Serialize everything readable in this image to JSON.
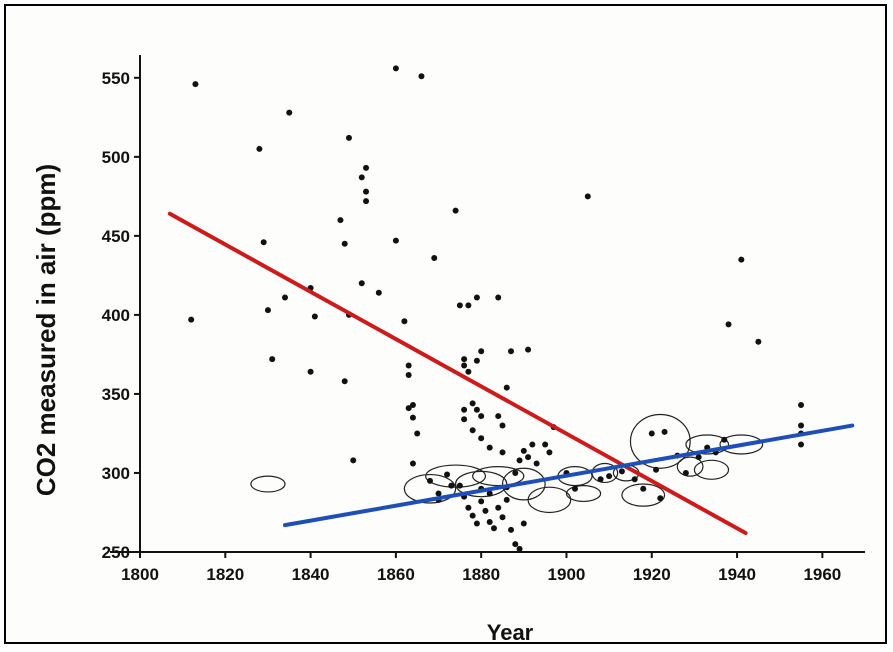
{
  "chart_data": {
    "type": "scatter",
    "title": "",
    "xlabel": "Year",
    "ylabel": "CO2 measured in air  (ppm)",
    "xlim": [
      1800,
      1970
    ],
    "ylim": [
      250,
      560
    ],
    "x_ticks": [
      1800,
      1820,
      1840,
      1860,
      1880,
      1900,
      1920,
      1940,
      1960
    ],
    "y_ticks": [
      250,
      300,
      350,
      400,
      450,
      500,
      550
    ],
    "grid": false,
    "points": [
      {
        "x": 1813,
        "y": 546
      },
      {
        "x": 1812,
        "y": 397
      },
      {
        "x": 1828,
        "y": 505
      },
      {
        "x": 1829,
        "y": 446
      },
      {
        "x": 1830,
        "y": 403
      },
      {
        "x": 1831,
        "y": 372
      },
      {
        "x": 1834,
        "y": 411
      },
      {
        "x": 1835,
        "y": 528
      },
      {
        "x": 1840,
        "y": 417
      },
      {
        "x": 1841,
        "y": 399
      },
      {
        "x": 1840,
        "y": 364
      },
      {
        "x": 1847,
        "y": 460
      },
      {
        "x": 1848,
        "y": 445
      },
      {
        "x": 1849,
        "y": 512
      },
      {
        "x": 1848,
        "y": 358
      },
      {
        "x": 1849,
        "y": 400
      },
      {
        "x": 1850,
        "y": 308
      },
      {
        "x": 1852,
        "y": 487
      },
      {
        "x": 1853,
        "y": 493
      },
      {
        "x": 1853,
        "y": 478
      },
      {
        "x": 1853,
        "y": 472
      },
      {
        "x": 1852,
        "y": 420
      },
      {
        "x": 1856,
        "y": 414
      },
      {
        "x": 1860,
        "y": 556
      },
      {
        "x": 1860,
        "y": 447
      },
      {
        "x": 1866,
        "y": 551
      },
      {
        "x": 1869,
        "y": 436
      },
      {
        "x": 1862,
        "y": 396
      },
      {
        "x": 1863,
        "y": 368
      },
      {
        "x": 1863,
        "y": 362
      },
      {
        "x": 1863,
        "y": 341
      },
      {
        "x": 1864,
        "y": 343
      },
      {
        "x": 1864,
        "y": 335
      },
      {
        "x": 1865,
        "y": 325
      },
      {
        "x": 1864,
        "y": 306
      },
      {
        "x": 1874,
        "y": 466
      },
      {
        "x": 1875,
        "y": 406
      },
      {
        "x": 1877,
        "y": 406
      },
      {
        "x": 1879,
        "y": 411
      },
      {
        "x": 1884,
        "y": 411
      },
      {
        "x": 1876,
        "y": 372
      },
      {
        "x": 1876,
        "y": 368
      },
      {
        "x": 1877,
        "y": 364
      },
      {
        "x": 1879,
        "y": 371
      },
      {
        "x": 1880,
        "y": 377
      },
      {
        "x": 1876,
        "y": 340
      },
      {
        "x": 1876,
        "y": 334
      },
      {
        "x": 1878,
        "y": 344
      },
      {
        "x": 1879,
        "y": 340
      },
      {
        "x": 1880,
        "y": 336
      },
      {
        "x": 1878,
        "y": 327
      },
      {
        "x": 1880,
        "y": 322
      },
      {
        "x": 1882,
        "y": 316
      },
      {
        "x": 1885,
        "y": 313
      },
      {
        "x": 1885,
        "y": 330
      },
      {
        "x": 1884,
        "y": 336
      },
      {
        "x": 1887,
        "y": 377
      },
      {
        "x": 1891,
        "y": 378
      },
      {
        "x": 1886,
        "y": 354
      },
      {
        "x": 1875,
        "y": 292
      },
      {
        "x": 1876,
        "y": 285
      },
      {
        "x": 1877,
        "y": 278
      },
      {
        "x": 1878,
        "y": 273
      },
      {
        "x": 1879,
        "y": 268
      },
      {
        "x": 1880,
        "y": 282
      },
      {
        "x": 1880,
        "y": 290
      },
      {
        "x": 1881,
        "y": 276
      },
      {
        "x": 1882,
        "y": 287
      },
      {
        "x": 1882,
        "y": 269
      },
      {
        "x": 1883,
        "y": 265
      },
      {
        "x": 1884,
        "y": 278
      },
      {
        "x": 1885,
        "y": 272
      },
      {
        "x": 1886,
        "y": 283
      },
      {
        "x": 1886,
        "y": 291
      },
      {
        "x": 1887,
        "y": 264
      },
      {
        "x": 1888,
        "y": 255
      },
      {
        "x": 1889,
        "y": 252
      },
      {
        "x": 1890,
        "y": 268
      },
      {
        "x": 1888,
        "y": 300
      },
      {
        "x": 1889,
        "y": 308
      },
      {
        "x": 1890,
        "y": 314
      },
      {
        "x": 1891,
        "y": 310
      },
      {
        "x": 1892,
        "y": 318
      },
      {
        "x": 1893,
        "y": 306
      },
      {
        "x": 1895,
        "y": 318
      },
      {
        "x": 1896,
        "y": 313
      },
      {
        "x": 1897,
        "y": 329
      },
      {
        "x": 1868,
        "y": 295
      },
      {
        "x": 1870,
        "y": 287
      },
      {
        "x": 1872,
        "y": 299
      },
      {
        "x": 1873,
        "y": 292
      },
      {
        "x": 1870,
        "y": 283
      },
      {
        "x": 1905,
        "y": 475
      },
      {
        "x": 1900,
        "y": 300
      },
      {
        "x": 1902,
        "y": 290
      },
      {
        "x": 1908,
        "y": 296
      },
      {
        "x": 1910,
        "y": 298
      },
      {
        "x": 1913,
        "y": 301
      },
      {
        "x": 1916,
        "y": 296
      },
      {
        "x": 1918,
        "y": 290
      },
      {
        "x": 1920,
        "y": 325
      },
      {
        "x": 1921,
        "y": 302
      },
      {
        "x": 1922,
        "y": 284
      },
      {
        "x": 1923,
        "y": 326
      },
      {
        "x": 1926,
        "y": 311
      },
      {
        "x": 1928,
        "y": 300
      },
      {
        "x": 1931,
        "y": 310
      },
      {
        "x": 1933,
        "y": 316
      },
      {
        "x": 1935,
        "y": 313
      },
      {
        "x": 1937,
        "y": 321
      },
      {
        "x": 1938,
        "y": 394
      },
      {
        "x": 1941,
        "y": 435
      },
      {
        "x": 1945,
        "y": 383
      },
      {
        "x": 1955,
        "y": 343
      },
      {
        "x": 1955,
        "y": 330
      },
      {
        "x": 1955,
        "y": 325
      },
      {
        "x": 1955,
        "y": 318
      }
    ],
    "trend_lines": [
      {
        "color": "#cc1b1b",
        "from": [
          1807,
          464
        ],
        "to": [
          1942,
          262
        ]
      },
      {
        "color": "#1e4fb8",
        "from": [
          1834,
          267
        ],
        "to": [
          1967,
          330
        ]
      }
    ],
    "ellipses": [
      {
        "cx": 1830,
        "cy": 293,
        "rx": 4,
        "ry": 5
      },
      {
        "cx": 1868,
        "cy": 290,
        "rx": 6,
        "ry": 9
      },
      {
        "cx": 1874,
        "cy": 298,
        "rx": 7,
        "ry": 7
      },
      {
        "cx": 1880,
        "cy": 293,
        "rx": 6,
        "ry": 8
      },
      {
        "cx": 1884,
        "cy": 298,
        "rx": 6,
        "ry": 6
      },
      {
        "cx": 1890,
        "cy": 293,
        "rx": 5,
        "ry": 10
      },
      {
        "cx": 1896,
        "cy": 283,
        "rx": 5,
        "ry": 8
      },
      {
        "cx": 1902,
        "cy": 298,
        "rx": 4,
        "ry": 6
      },
      {
        "cx": 1904,
        "cy": 287,
        "rx": 4,
        "ry": 5
      },
      {
        "cx": 1909,
        "cy": 300,
        "rx": 3,
        "ry": 6
      },
      {
        "cx": 1914,
        "cy": 300,
        "rx": 3,
        "ry": 5
      },
      {
        "cx": 1918,
        "cy": 286,
        "rx": 5,
        "ry": 7
      },
      {
        "cx": 1922,
        "cy": 320,
        "rx": 7,
        "ry": 17
      },
      {
        "cx": 1929,
        "cy": 304,
        "rx": 3,
        "ry": 6
      },
      {
        "cx": 1933,
        "cy": 318,
        "rx": 5,
        "ry": 6
      },
      {
        "cx": 1934,
        "cy": 302,
        "rx": 4,
        "ry": 6
      },
      {
        "cx": 1941,
        "cy": 318,
        "rx": 5,
        "ry": 6
      }
    ]
  }
}
